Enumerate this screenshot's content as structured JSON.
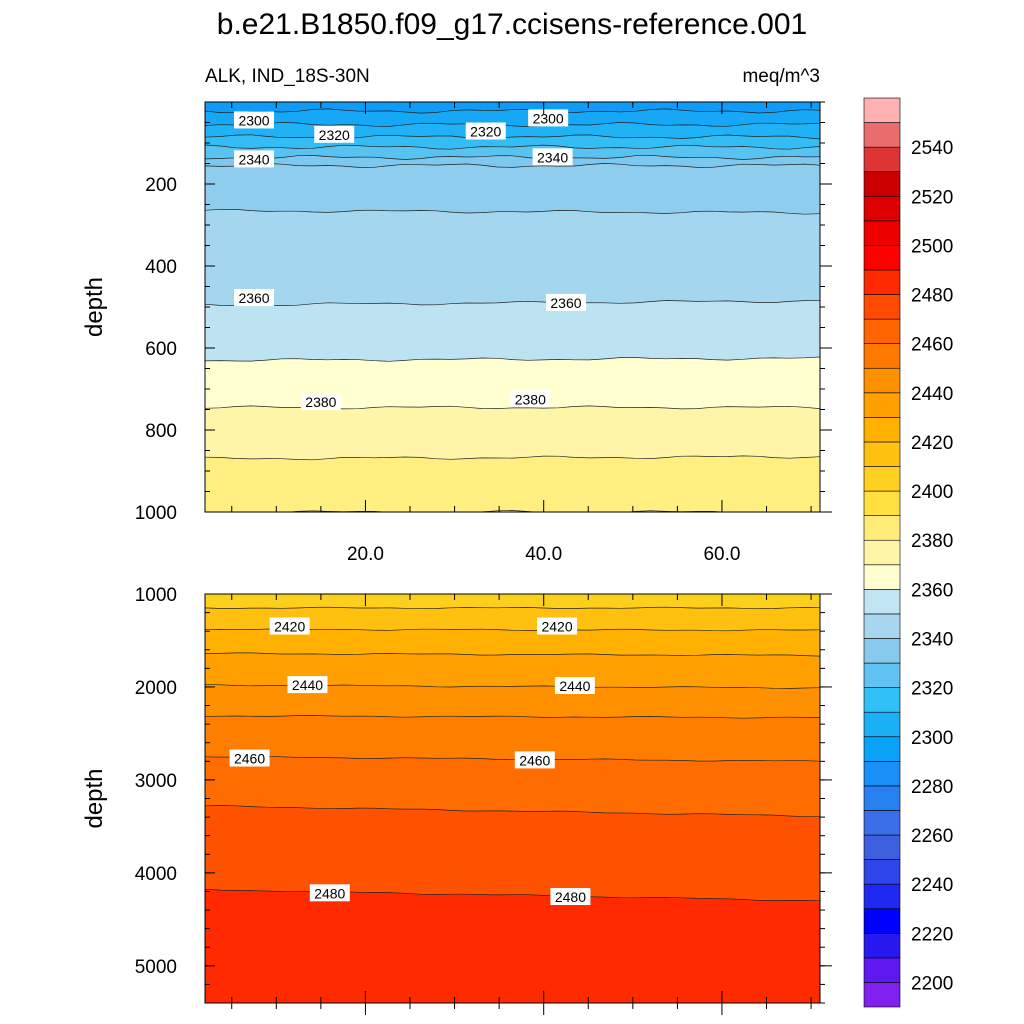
{
  "title": "b.e21.B1850.f09_g17.ccisens-reference.001",
  "subtitle_left": "ALK, IND_18S-30N",
  "subtitle_right": "meq/m^3",
  "chart_data": [
    {
      "type": "contour",
      "panel": "upper",
      "ylabel": "depth",
      "ylim": [
        1000,
        0
      ],
      "yticks": [
        "200",
        "400",
        "600",
        "800",
        "1000"
      ],
      "yticks_values": [
        200,
        400,
        600,
        800,
        1000
      ],
      "xlim": [
        2,
        71
      ],
      "xticks": [
        "20.0",
        "40.0",
        "60.0"
      ],
      "xticks_values": [
        20,
        40,
        60
      ],
      "contour_levels": [
        2290,
        2300,
        2310,
        2320,
        2330,
        2340,
        2350,
        2360,
        2370,
        2380,
        2390,
        2400
      ],
      "contour_depths": [
        [
          22,
          22
        ],
        [
          55,
          55
        ],
        [
          85,
          85
        ],
        [
          110,
          110
        ],
        [
          135,
          135
        ],
        [
          155,
          155
        ],
        [
          265,
          270
        ],
        [
          495,
          485
        ],
        [
          630,
          625
        ],
        [
          745,
          745
        ],
        [
          870,
          865
        ],
        [
          1000,
          1000
        ]
      ],
      "labels": [
        {
          "text": "2300",
          "x": 7.5,
          "y": 45
        },
        {
          "text": "2320",
          "x": 16.5,
          "y": 80
        },
        {
          "text": "2320",
          "x": 33.5,
          "y": 72
        },
        {
          "text": "2300",
          "x": 40.5,
          "y": 40
        },
        {
          "text": "2340",
          "x": 7.5,
          "y": 140
        },
        {
          "text": "2340",
          "x": 41,
          "y": 135
        },
        {
          "text": "2360",
          "x": 7.5,
          "y": 478
        },
        {
          "text": "2360",
          "x": 42.5,
          "y": 490
        },
        {
          "text": "2380",
          "x": 15,
          "y": 732
        },
        {
          "text": "2380",
          "x": 38.5,
          "y": 725
        }
      ]
    },
    {
      "type": "contour",
      "panel": "lower",
      "ylabel": "depth",
      "ylim": [
        5400,
        1000
      ],
      "yticks": [
        "1000",
        "2000",
        "3000",
        "4000",
        "5000"
      ],
      "yticks_values": [
        1000,
        2000,
        3000,
        4000,
        5000
      ],
      "xlim": [
        2,
        71
      ],
      "contour_levels": [
        2410,
        2420,
        2430,
        2440,
        2450,
        2460,
        2470,
        2480
      ],
      "contour_depths": [
        [
          1150,
          1150
        ],
        [
          1380,
          1390
        ],
        [
          1640,
          1660
        ],
        [
          1980,
          2010
        ],
        [
          2310,
          2330
        ],
        [
          2750,
          2800
        ],
        [
          3280,
          3390
        ],
        [
          4180,
          4300
        ]
      ],
      "labels": [
        {
          "text": "2420",
          "x": 11.5,
          "y": 1350
        },
        {
          "text": "2420",
          "x": 41.5,
          "y": 1350
        },
        {
          "text": "2440",
          "x": 13.5,
          "y": 1980
        },
        {
          "text": "2440",
          "x": 43.5,
          "y": 1990
        },
        {
          "text": "2460",
          "x": 7,
          "y": 2770
        },
        {
          "text": "2460",
          "x": 39,
          "y": 2790
        },
        {
          "text": "2480",
          "x": 16,
          "y": 4220
        },
        {
          "text": "2480",
          "x": 43,
          "y": 4260
        }
      ]
    }
  ],
  "colorbar": {
    "labels": [
      "2200",
      "2220",
      "2240",
      "2260",
      "2280",
      "2300",
      "2320",
      "2340",
      "2360",
      "2380",
      "2400",
      "2420",
      "2440",
      "2460",
      "2480",
      "2500",
      "2520",
      "2540"
    ],
    "colors": [
      "#8020f0",
      "#6018f0",
      "#2818f0",
      "#0000ff",
      "#1e28f0",
      "#2e45e8",
      "#3c5fe0",
      "#3a6ee8",
      "#2680f0",
      "#1890f8",
      "#08a2f8",
      "#1ab0f5",
      "#30c0f8",
      "#60c2f0",
      "#88caee",
      "#a8d6f0",
      "#c0e4f2",
      "#ffffd0",
      "#fff5a8",
      "#ffec78",
      "#ffe040",
      "#ffd020",
      "#ffc010",
      "#ffb000",
      "#ffa000",
      "#ff9000",
      "#ff7800",
      "#ff6400",
      "#ff4a00",
      "#ff2a00",
      "#ff0000",
      "#ee0000",
      "#dc0000",
      "#cc0000",
      "#dd3535",
      "#ea6c6c",
      "#ffb0b0"
    ]
  },
  "colors": {
    "upper_bands": [
      "#0e9cf8",
      "#16a8f6",
      "#20b2f6",
      "#34bcf4",
      "#58c2f0",
      "#7cc8ee",
      "#8ecdee",
      "#a4d6f0",
      "#bde3f3",
      "#ffffd0",
      "#fff5a8",
      "#ffee80",
      "#ffe860"
    ],
    "lower_bands": [
      "#fbcf1c",
      "#ffc010",
      "#ffb000",
      "#ffa000",
      "#ff9000",
      "#ff7e00",
      "#ff6c00",
      "#ff5200",
      "#ff2a00"
    ]
  }
}
